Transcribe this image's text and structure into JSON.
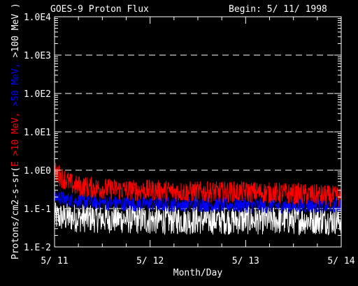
{
  "chart_data": {
    "type": "line",
    "title": "GOES-9 Proton Flux",
    "subtitle": "Begin: 5/ 11/ 1998",
    "xlabel": "Month/Day",
    "ylabel_prefix": "Protons/cm2-s-sr(",
    "ylabel_series": [
      "E >10 MeV, ",
      ">50 MeV, ",
      ">100 MeV )"
    ],
    "x_ticks": [
      "5/ 11",
      "5/ 12",
      "5/ 13",
      "5/ 14"
    ],
    "x_range_days": [
      0,
      3
    ],
    "y_scale": "log",
    "ylim": [
      0.01,
      10000
    ],
    "y_ticks": [
      {
        "value": 10000,
        "label": "1.0E4"
      },
      {
        "value": 1000,
        "label": "1.0E3"
      },
      {
        "value": 100,
        "label": "1.0E2"
      },
      {
        "value": 10,
        "label": "1.0E1"
      },
      {
        "value": 1,
        "label": "1.0E0"
      },
      {
        "value": 0.1,
        "label": "1.E-1"
      },
      {
        "value": 0.01,
        "label": "1.E-2"
      }
    ],
    "grid": "dashed horizontal at decades",
    "series": [
      {
        "name": "E >10 MeV",
        "color": "#ff0000",
        "days": [
          0,
          0.1,
          0.2,
          0.4,
          0.6,
          0.8,
          1.0,
          1.3,
          1.6,
          2.0,
          2.4,
          2.8,
          3.0
        ],
        "values": [
          0.9,
          0.6,
          0.4,
          0.35,
          0.32,
          0.3,
          0.3,
          0.28,
          0.27,
          0.27,
          0.25,
          0.22,
          0.2
        ]
      },
      {
        "name": ">50 MeV",
        "color": "#0000ff",
        "days": [
          0,
          0.2,
          0.5,
          1.0,
          1.5,
          2.0,
          2.5,
          3.0
        ],
        "values": [
          0.2,
          0.16,
          0.14,
          0.13,
          0.13,
          0.12,
          0.12,
          0.12
        ]
      },
      {
        "name": ">100 MeV",
        "color": "#ffffff",
        "days": [
          0,
          0.5,
          1.0,
          1.5,
          2.0,
          2.5,
          3.0
        ],
        "values": [
          0.06,
          0.055,
          0.05,
          0.05,
          0.05,
          0.05,
          0.05
        ]
      }
    ]
  }
}
